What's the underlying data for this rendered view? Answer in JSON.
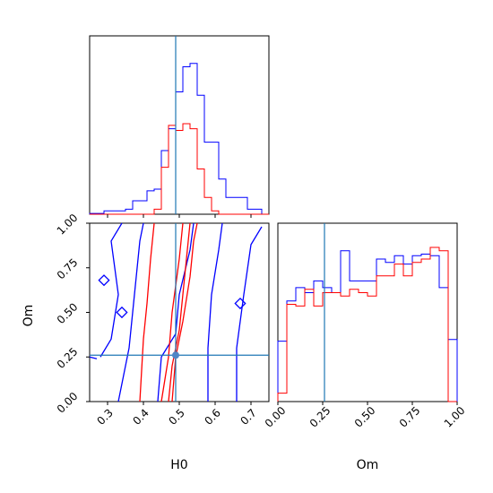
{
  "chart_data": {
    "type": "corner",
    "parameters": [
      "H0",
      "Om"
    ],
    "truth": {
      "H0": 0.49,
      "Om": 0.26
    },
    "truth_color": "#1f77b4",
    "truth_point_color": "#4f86c6",
    "series": [
      {
        "color": "#0000ff"
      },
      {
        "color": "#ff0000"
      }
    ],
    "panels": [
      {
        "id": "h0-marginal",
        "type": "histogram",
        "xlim": [
          0.25,
          0.75
        ],
        "bin_edges": [
          0.25,
          0.27,
          0.29,
          0.31,
          0.33,
          0.35,
          0.37,
          0.39,
          0.41,
          0.43,
          0.45,
          0.47,
          0.49,
          0.51,
          0.53,
          0.55,
          0.57,
          0.59,
          0.61,
          0.63,
          0.65,
          0.67,
          0.69,
          0.71,
          0.73,
          0.75
        ],
        "blue_counts": [
          0.005,
          0.005,
          0.02,
          0.02,
          0.02,
          0.03,
          0.08,
          0.08,
          0.14,
          0.15,
          0.38,
          0.51,
          0.73,
          0.88,
          0.9,
          0.71,
          0.43,
          0.43,
          0.21,
          0.1,
          0.1,
          0.1,
          0.03,
          0.03,
          0.0
        ],
        "red_counts": [
          0.0,
          0.0,
          0.0,
          0.0,
          0.0,
          0.0,
          0.0,
          0.0,
          0.0,
          0.03,
          0.28,
          0.53,
          0.5,
          0.54,
          0.51,
          0.27,
          0.1,
          0.02,
          0.0,
          0.0,
          0.0,
          0.0,
          0.0,
          0.0,
          0.0
        ],
        "count_max": 1.0
      },
      {
        "id": "h0-om-contour",
        "type": "contour",
        "xlabel": "H0",
        "ylabel": "Om",
        "xlim": [
          0.25,
          0.75
        ],
        "ylim": [
          0.0,
          1.0
        ],
        "xticks": [
          "0.3",
          "0.4",
          "0.5",
          "0.6",
          "0.7"
        ],
        "yticks": [
          "0.00",
          "0.25",
          "0.50",
          "0.75",
          "1.00"
        ],
        "blue_contours": [
          [
            [
              0.28,
              0.25
            ],
            [
              0.31,
              0.35
            ],
            [
              0.33,
              0.6
            ],
            [
              0.31,
              0.9
            ],
            [
              0.34,
              1.0
            ]
          ],
          [
            [
              0.33,
              0.0
            ],
            [
              0.34,
              0.1
            ],
            [
              0.36,
              0.3
            ],
            [
              0.37,
              0.5
            ],
            [
              0.38,
              0.7
            ],
            [
              0.39,
              0.9
            ],
            [
              0.4,
              1.0
            ]
          ],
          [
            [
              0.44,
              0.0
            ],
            [
              0.45,
              0.25
            ],
            [
              0.49,
              0.38
            ],
            [
              0.5,
              0.6
            ],
            [
              0.53,
              0.85
            ],
            [
              0.54,
              1.0
            ]
          ],
          [
            [
              0.58,
              0.0
            ],
            [
              0.58,
              0.3
            ],
            [
              0.59,
              0.6
            ],
            [
              0.61,
              0.85
            ],
            [
              0.62,
              1.0
            ]
          ],
          [
            [
              0.66,
              0.0
            ],
            [
              0.66,
              0.3
            ],
            [
              0.68,
              0.6
            ],
            [
              0.7,
              0.88
            ],
            [
              0.73,
              0.98
            ]
          ],
          [
            [
              0.24,
              0.25
            ],
            [
              0.27,
              0.24
            ]
          ]
        ],
        "blue_markers": [
          [
            0.29,
            0.68
          ],
          [
            0.34,
            0.5
          ],
          [
            0.67,
            0.55
          ]
        ],
        "red_contours": [
          [
            [
              0.39,
              0.0
            ],
            [
              0.4,
              0.35
            ],
            [
              0.41,
              0.55
            ],
            [
              0.42,
              0.8
            ],
            [
              0.43,
              1.0
            ]
          ],
          [
            [
              0.45,
              0.0
            ],
            [
              0.47,
              0.25
            ],
            [
              0.48,
              0.5
            ],
            [
              0.5,
              0.8
            ],
            [
              0.51,
              1.0
            ]
          ],
          [
            [
              0.47,
              0.0
            ],
            [
              0.48,
              0.2
            ],
            [
              0.5,
              0.4
            ],
            [
              0.51,
              0.6
            ],
            [
              0.52,
              0.8
            ],
            [
              0.53,
              1.0
            ]
          ],
          [
            [
              0.48,
              0.0
            ],
            [
              0.49,
              0.25
            ],
            [
              0.51,
              0.45
            ],
            [
              0.53,
              0.7
            ],
            [
              0.54,
              0.9
            ],
            [
              0.55,
              1.0
            ]
          ]
        ]
      },
      {
        "id": "om-marginal",
        "type": "histogram",
        "xlabel": "Om",
        "xlim": [
          0.0,
          1.0
        ],
        "xticks": [
          "0.00",
          "0.25",
          "0.50",
          "0.75",
          "1.00"
        ],
        "bin_edges": [
          0.0,
          0.05,
          0.1,
          0.15,
          0.2,
          0.25,
          0.3,
          0.35,
          0.4,
          0.45,
          0.5,
          0.55,
          0.6,
          0.65,
          0.7,
          0.75,
          0.8,
          0.85,
          0.9,
          0.95,
          1.0
        ],
        "blue_counts": [
          0.36,
          0.6,
          0.68,
          0.65,
          0.72,
          0.68,
          0.65,
          0.9,
          0.72,
          0.72,
          0.72,
          0.85,
          0.83,
          0.87,
          0.82,
          0.87,
          0.88,
          0.87,
          0.68,
          0.37
        ],
        "red_counts": [
          0.05,
          0.58,
          0.57,
          0.67,
          0.57,
          0.65,
          0.65,
          0.63,
          0.67,
          0.65,
          0.63,
          0.75,
          0.75,
          0.82,
          0.75,
          0.83,
          0.85,
          0.92,
          0.9,
          0.0
        ],
        "count_max": 1.0
      }
    ]
  }
}
